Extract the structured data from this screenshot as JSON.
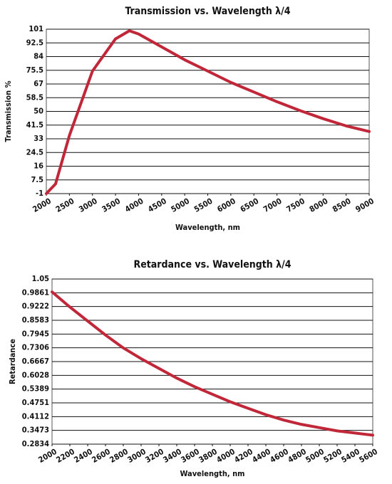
{
  "chart_data": [
    {
      "type": "line",
      "title": "Transmission vs. Wavelength λ/4",
      "xlabel": "Wavelength, nm",
      "ylabel": "Transmission %",
      "x": [
        2000,
        2200,
        2500,
        3000,
        3500,
        3800,
        4000,
        4500,
        5000,
        5500,
        6000,
        6500,
        7000,
        7500,
        8000,
        8500,
        9000
      ],
      "values": [
        -1,
        5,
        35,
        75,
        95,
        100,
        98,
        90,
        82,
        75,
        68,
        62,
        56,
        50.5,
        45.5,
        41,
        37.5
      ],
      "color": "#c0283a",
      "xlim": [
        2000,
        9000
      ],
      "xticks": [
        2000,
        2500,
        3000,
        3500,
        4000,
        4500,
        5000,
        5500,
        6000,
        6500,
        7000,
        7500,
        8000,
        8500,
        9000
      ],
      "ylim": [
        -1,
        101
      ],
      "yticks": [
        -1,
        7.5,
        16,
        24.5,
        33,
        41.5,
        50,
        58.5,
        67,
        75.5,
        84,
        92.5,
        101
      ],
      "grid": true
    },
    {
      "type": "line",
      "title": "Retardance vs. Wavelength λ/4",
      "xlabel": "Wavelength, nm",
      "ylabel": "Retardance",
      "x": [
        2000,
        2200,
        2400,
        2600,
        2800,
        3000,
        3200,
        3400,
        3600,
        3800,
        4000,
        4200,
        4400,
        4600,
        4800,
        5000,
        5200,
        5400,
        5600
      ],
      "values": [
        0.99,
        0.92,
        0.855,
        0.79,
        0.73,
        0.68,
        0.635,
        0.59,
        0.55,
        0.515,
        0.48,
        0.45,
        0.42,
        0.395,
        0.375,
        0.36,
        0.345,
        0.335,
        0.325
      ],
      "color": "#c0283a",
      "xlim": [
        2000,
        5600
      ],
      "xticks": [
        2000,
        2200,
        2400,
        2600,
        2800,
        3000,
        3200,
        3400,
        3600,
        3800,
        4000,
        4200,
        4400,
        4600,
        4800,
        5000,
        5200,
        5400,
        5600
      ],
      "ylim": [
        0.2834,
        1.05
      ],
      "yticks": [
        0.2834,
        0.3473,
        0.4112,
        0.4751,
        0.5389,
        0.6028,
        0.6667,
        0.7306,
        0.7945,
        0.8583,
        0.9222,
        0.9861,
        1.05
      ],
      "grid": true
    }
  ]
}
